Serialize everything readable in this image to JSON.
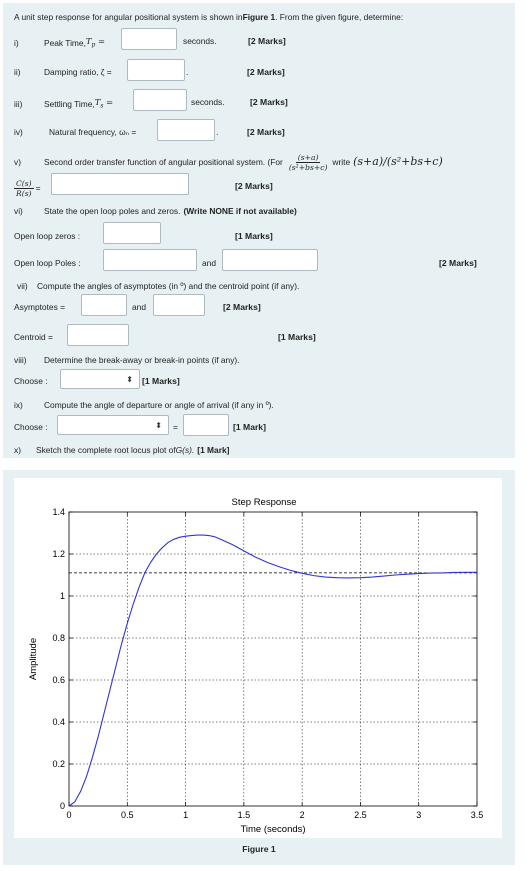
{
  "intro": {
    "pre": "A unit step response for angular positional system is shown in ",
    "fig_ref": "Figure 1",
    "post": ". From the given figure, determine:"
  },
  "q1": {
    "num": "i)",
    "label_pre": "Peak Time, ",
    "sym": "T",
    "sub": "p",
    "eq": " =",
    "unit": "seconds.",
    "marks": "[2 Marks]"
  },
  "q2": {
    "num": "ii)",
    "label": "Damping ratio, ζ =",
    "after": ".",
    "marks": "[2 Marks]"
  },
  "q3": {
    "num": "iii)",
    "label_pre": "Settling Time, ",
    "sym": "T",
    "sub": "s",
    "eq": " =",
    "unit": "seconds.",
    "marks": "[2 Marks]"
  },
  "q4": {
    "num": "iv)",
    "label": "Natural frequency, ωₙ =",
    "after": ".",
    "marks": "[2 Marks]"
  },
  "q5": {
    "num": "v)",
    "text": "Second order transfer function of angular positional system. (For",
    "frac_num": "(s+a)",
    "frac_den": "(s²+bs+c)",
    "write": "write",
    "expr": "(s+a)/(s²+bs+c)",
    "tf_num": "C(s)",
    "tf_den": "R(s)",
    "tf_eq": "=",
    "marks": "[2 Marks]"
  },
  "q6": {
    "num": "vi)",
    "text": "State the open loop poles and zeros.",
    "bold": "(Write NONE if not available)",
    "zeros_label": "Open loop zeros :",
    "zeros_marks": "[1 Marks]",
    "poles_label": "Open loop Poles :",
    "and": "and",
    "poles_marks": "[2 Marks]"
  },
  "q7": {
    "num": "vii)",
    "text": "Compute the angles of asymptotes (in º) and the centroid point (if any).",
    "asym_label": "Asymptotes =",
    "and": "and",
    "asym_marks": "[2 Marks]",
    "centroid_label": "Centroid =",
    "centroid_marks": "[1 Marks]"
  },
  "q8": {
    "num": "viii)",
    "text": "Determine the break-away or break-in points (if any).",
    "choose_label": "Choose :",
    "marks": "[1 Marks]"
  },
  "q9": {
    "num": "ix)",
    "text": "Compute the angle of departure or angle of arrival (if any in º).",
    "choose_label": "Choose :",
    "eq": "=",
    "marks": "[1 Mark]"
  },
  "q10": {
    "num": "x)",
    "text_pre": "Sketch the complete root locus plot of ",
    "text_it": "G(s).",
    "marks": "[1 Mark]"
  },
  "icons": {
    "select_arrow": "sort-arrows-icon"
  },
  "figure_caption": "Figure 1",
  "chart_data": {
    "type": "line",
    "title": "Step Response",
    "xlabel": "Time (seconds)",
    "ylabel": "Amplitude",
    "xlim": [
      0,
      3.5
    ],
    "ylim": [
      0,
      1.4
    ],
    "xticks": [
      "0",
      "0.5",
      "1",
      "1.5",
      "2",
      "2.5",
      "3",
      "3.5"
    ],
    "yticks": [
      "0",
      "0.2",
      "0.4",
      "0.6",
      "0.8",
      "1",
      "1.2",
      "1.4"
    ],
    "grid": true,
    "reference_line_y": 1.11,
    "line_color": "#2f35d6",
    "series": [
      {
        "x": [
          0,
          0.05,
          0.1,
          0.15,
          0.2,
          0.25,
          0.3,
          0.35,
          0.4,
          0.45,
          0.5,
          0.55,
          0.6,
          0.65,
          0.7,
          0.75,
          0.8,
          0.85,
          0.9,
          0.95,
          1.0,
          1.05,
          1.1,
          1.15,
          1.2,
          1.25,
          1.3,
          1.4,
          1.5,
          1.6,
          1.7,
          1.8,
          1.9,
          2.0,
          2.1,
          2.2,
          2.3,
          2.4,
          2.5,
          2.6,
          2.7,
          2.8,
          2.9,
          3.0,
          3.1,
          3.2,
          3.3,
          3.4,
          3.5
        ],
        "values": [
          0,
          0.02,
          0.07,
          0.14,
          0.23,
          0.33,
          0.44,
          0.55,
          0.66,
          0.77,
          0.87,
          0.96,
          1.04,
          1.11,
          1.16,
          1.2,
          1.23,
          1.255,
          1.27,
          1.28,
          1.285,
          1.288,
          1.29,
          1.29,
          1.288,
          1.282,
          1.27,
          1.245,
          1.215,
          1.185,
          1.16,
          1.14,
          1.122,
          1.108,
          1.097,
          1.09,
          1.087,
          1.086,
          1.087,
          1.09,
          1.095,
          1.1,
          1.104,
          1.107,
          1.109,
          1.11,
          1.112,
          1.113,
          1.113
        ]
      }
    ]
  }
}
